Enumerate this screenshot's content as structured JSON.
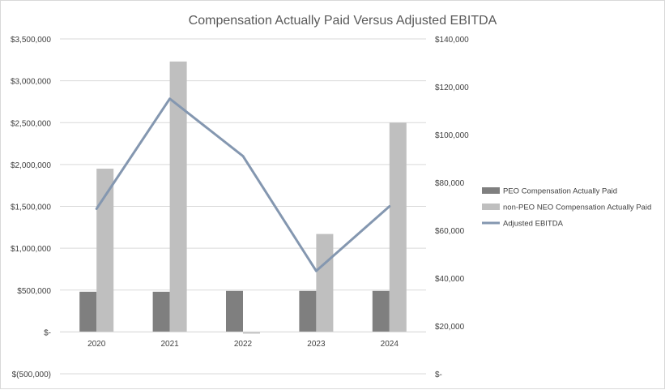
{
  "chart_data": {
    "type": "bar",
    "title": "Compensation Actually Paid Versus Adjusted EBITDA",
    "categories": [
      "2020",
      "2021",
      "2022",
      "2023",
      "2024"
    ],
    "series": [
      {
        "name": "PEO Compensation Actually Paid",
        "kind": "bar",
        "axis": "left",
        "color": "#7f7f7f",
        "values": [
          480000,
          480000,
          490000,
          490000,
          490000
        ]
      },
      {
        "name": "non-PEO NEO Compensation Actually Paid",
        "kind": "bar",
        "axis": "left",
        "color": "#bfbfbf",
        "values": [
          1950000,
          3230000,
          -20000,
          1170000,
          2500000
        ]
      },
      {
        "name": "Adjusted EBITDA",
        "kind": "line",
        "axis": "right",
        "color": "#8497b0",
        "values": [
          69000,
          115000,
          91000,
          43000,
          70000
        ]
      }
    ],
    "y_left": {
      "range": [
        -500000,
        3500000
      ],
      "ticks": [
        -500000,
        0,
        500000,
        1000000,
        1500000,
        2000000,
        2500000,
        3000000,
        3500000
      ],
      "tick_labels": [
        "$(500,000)",
        "$-",
        "$500,000",
        "$1,000,000",
        "$1,500,000",
        "$2,000,000",
        "$2,500,000",
        "$3,000,000",
        "$3,500,000"
      ]
    },
    "y_right": {
      "range": [
        0,
        140000
      ],
      "ticks": [
        0,
        20000,
        40000,
        60000,
        80000,
        100000,
        120000,
        140000
      ],
      "tick_labels": [
        "$-",
        "$20,000",
        "$40,000",
        "$60,000",
        "$80,000",
        "$100,000",
        "$120,000",
        "$140,000"
      ]
    },
    "legend_position": "right",
    "grid": true
  }
}
